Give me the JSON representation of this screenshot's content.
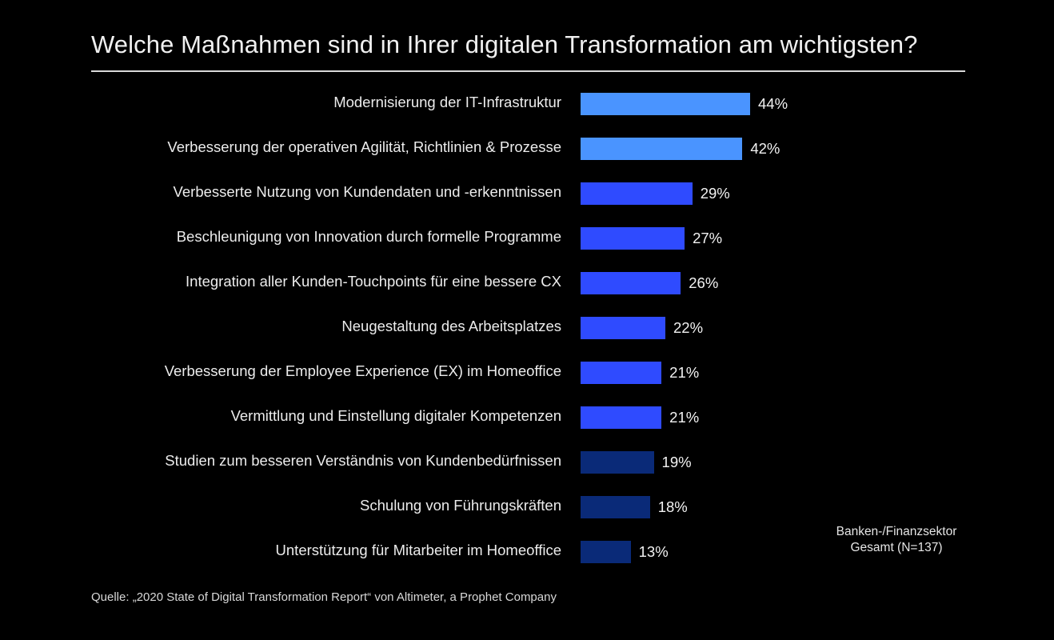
{
  "chart_data": {
    "type": "bar",
    "orientation": "horizontal",
    "title": "Welche Maßnahmen sind in Ihrer digitalen Transformation am wichtigsten?",
    "xlabel": "",
    "ylabel": "",
    "unit": "%",
    "xlim": [
      0,
      44
    ],
    "grid": false,
    "categories": [
      "Modernisierung der IT-Infrastruktur",
      "Verbesserung der operativen Agilität, Richtlinien & Prozesse",
      "Verbesserte Nutzung von Kundendaten und -erkenntnissen",
      "Beschleunigung von Innovation durch formelle Programme",
      "Integration aller Kunden-Touchpoints für eine bessere CX",
      "Neugestaltung des Arbeitsplatzes",
      "Verbesserung der Employee Experience (EX) im Homeoffice",
      "Vermittlung und Einstellung digitaler Kompetenzen",
      "Studien zum besseren Verständnis von Kundenbedürfnissen",
      "Schulung von Führungskräften",
      "Unterstützung für Mitarbeiter im Homeoffice"
    ],
    "values": [
      44,
      42,
      29,
      27,
      26,
      22,
      21,
      21,
      19,
      18,
      13
    ],
    "value_labels": [
      "44%",
      "42%",
      "29%",
      "27%",
      "26%",
      "22%",
      "21%",
      "21%",
      "19%",
      "18%",
      "13%"
    ],
    "bar_colors": [
      "#4a94ff",
      "#4a94ff",
      "#2f4bff",
      "#2f4bff",
      "#2f4bff",
      "#2f4bff",
      "#2f4bff",
      "#2f4bff",
      "#0a2a78",
      "#0a2a78",
      "#0a2a78"
    ],
    "legend": [
      "Banken-/Finanzsektor",
      "Gesamt (N=137)"
    ],
    "legend_position": "bottom-right",
    "source": "Quelle: „2020 State of Digital Transformation Report“ von Altimeter, a Prophet Company"
  },
  "colors": {
    "background": "#000000",
    "text": "#ececec",
    "rule": "#d9d9d9"
  }
}
